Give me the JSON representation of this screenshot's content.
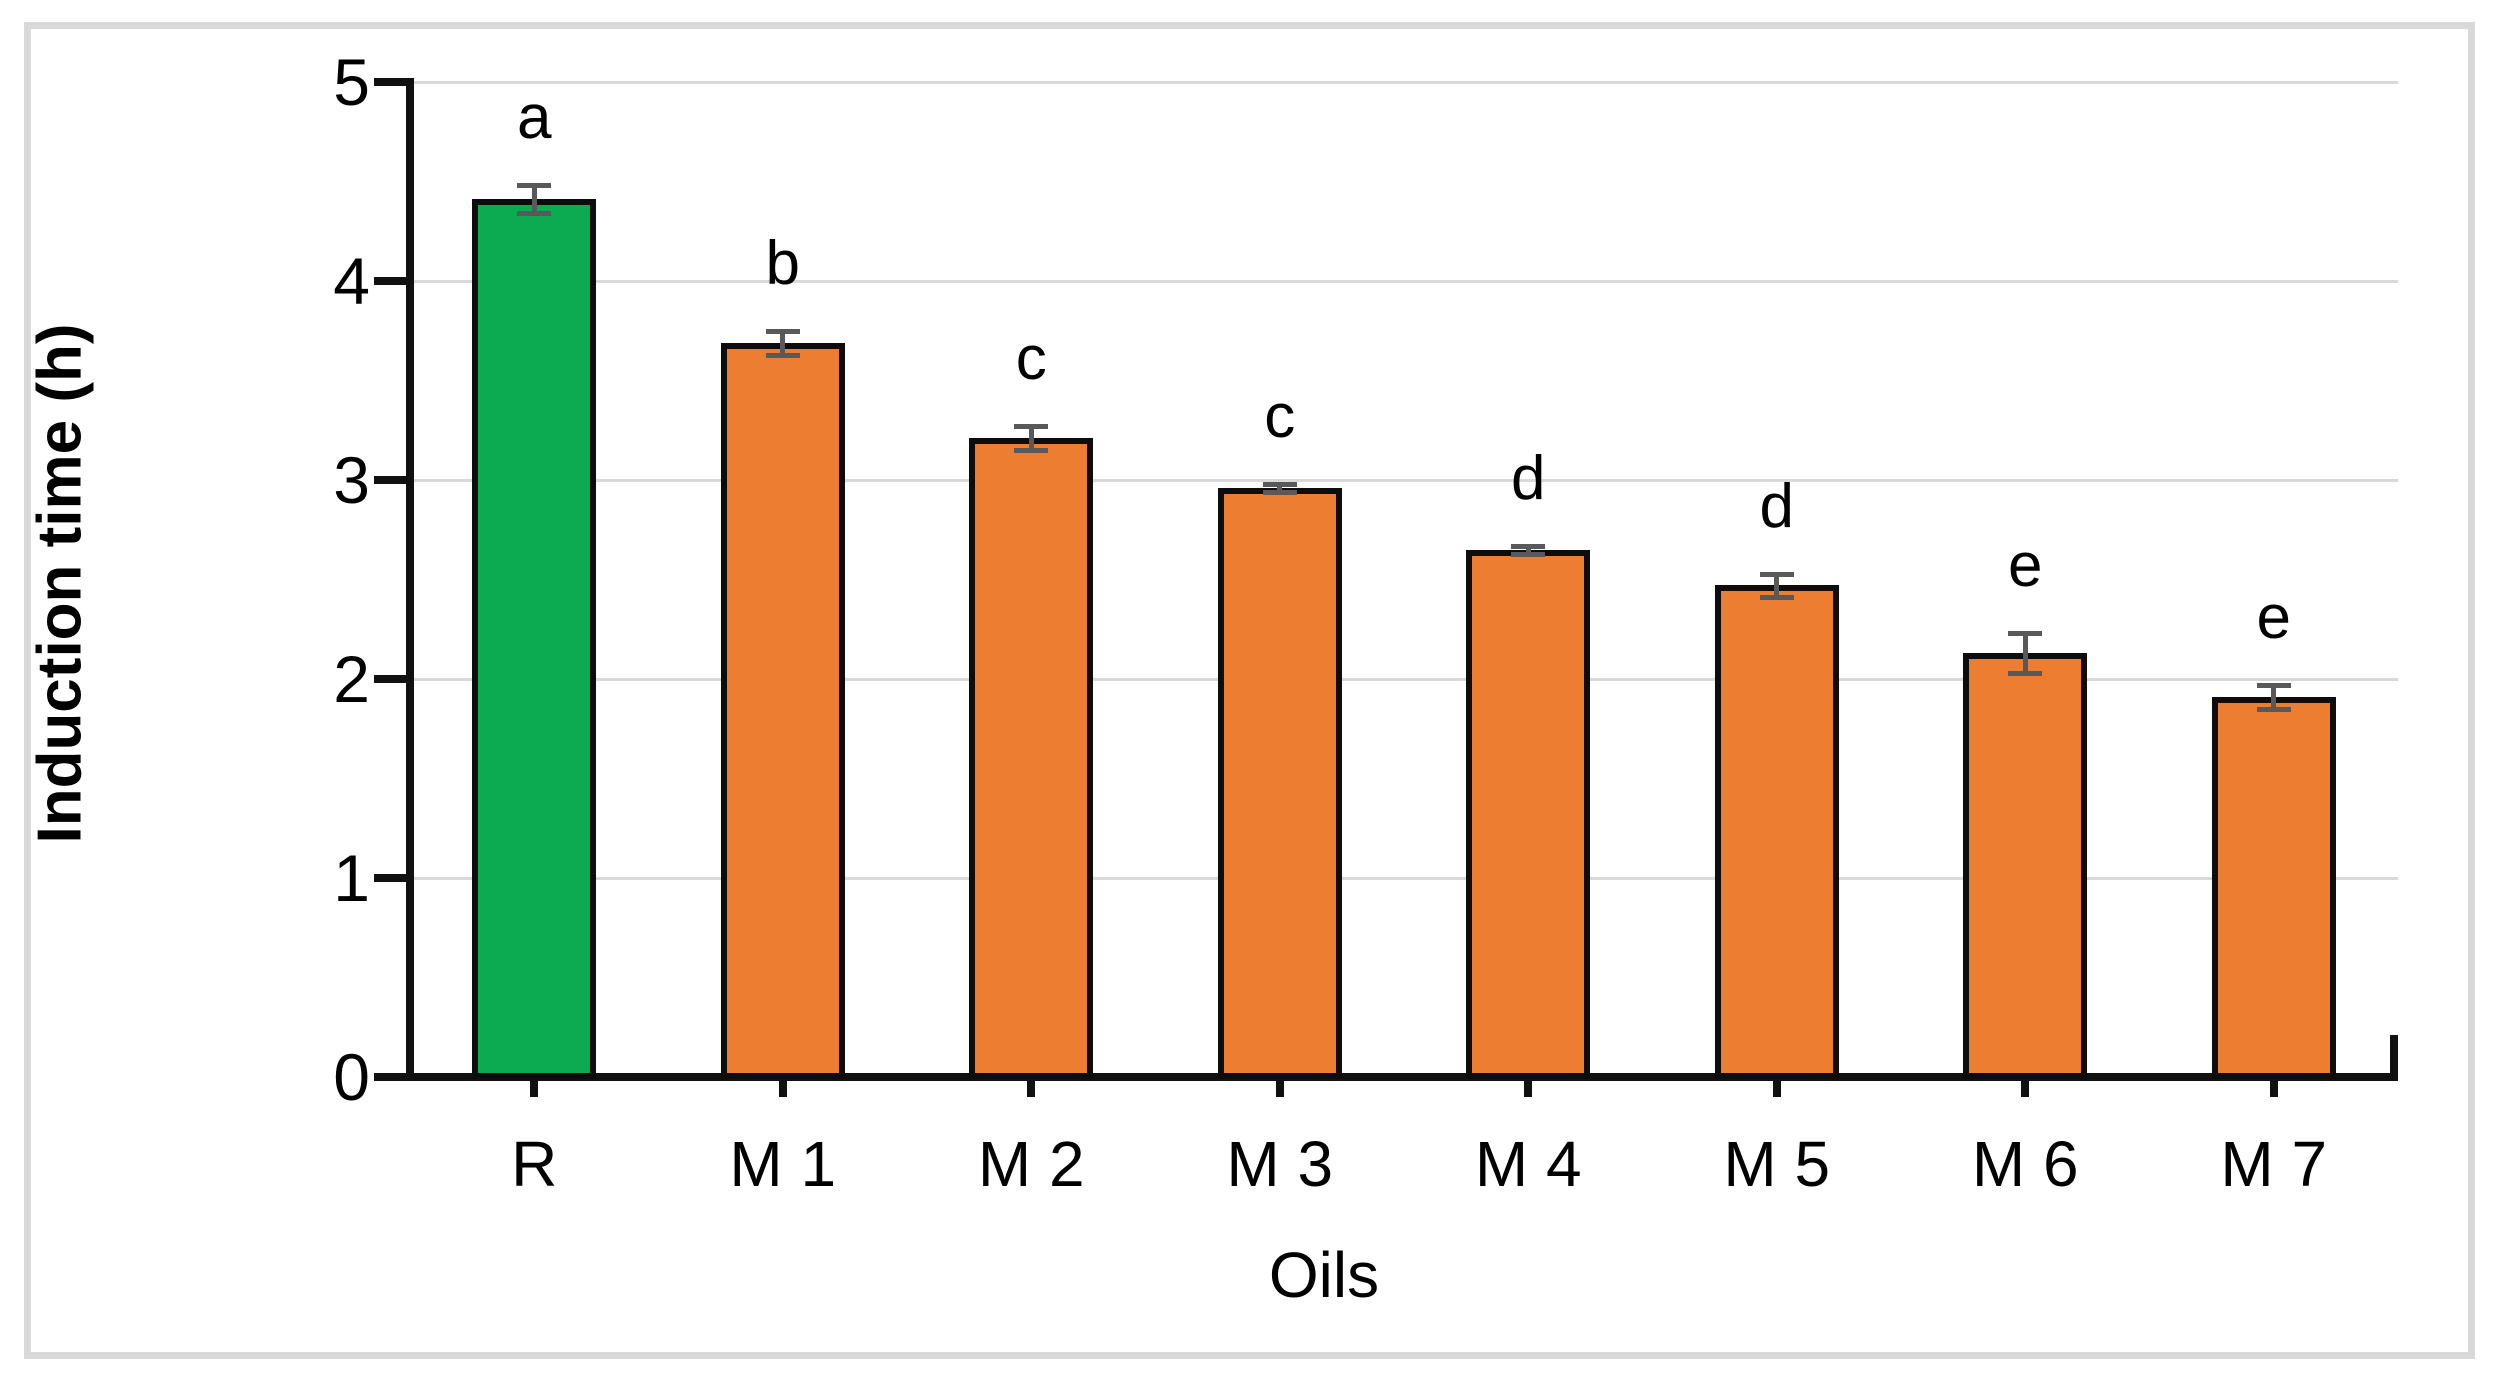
{
  "figure": {
    "y_axis_title": "Induction time (h)",
    "x_axis_title": "Oils"
  },
  "chart_data": {
    "type": "bar",
    "title": "",
    "xlabel": "Oils",
    "ylabel": "Induction time (h)",
    "categories": [
      "R",
      "M 1",
      "M 2",
      "M 3",
      "M 4",
      "M 5",
      "M 6",
      "M 7"
    ],
    "values": [
      4.41,
      3.69,
      3.21,
      2.96,
      2.65,
      2.47,
      2.13,
      1.91
    ],
    "error_bars": [
      0.07,
      0.06,
      0.06,
      0.02,
      0.02,
      0.06,
      0.1,
      0.06
    ],
    "significance_letters": [
      "a",
      "b",
      "c",
      "c",
      "d",
      "d",
      "e",
      "e"
    ],
    "bar_colors": [
      "#0CAB51",
      "#ED7D31",
      "#ED7D31",
      "#ED7D31",
      "#ED7D31",
      "#ED7D31",
      "#ED7D31",
      "#ED7D31"
    ],
    "y_ticks": [
      0,
      1,
      2,
      3,
      4,
      5
    ],
    "ylim": [
      0,
      5
    ],
    "grid": true,
    "legend": false
  },
  "colors": {
    "reference_bar_fill": "#0CAB51",
    "modified_bar_fill": "#ED7D31",
    "bar_border": "#0D0D0D",
    "error_bar": "#595959",
    "gridline": "#D9D9D9",
    "axis": "#111111",
    "frame_border": "#D9D9D9",
    "text": "#000000",
    "background": "#FFFFFF"
  }
}
